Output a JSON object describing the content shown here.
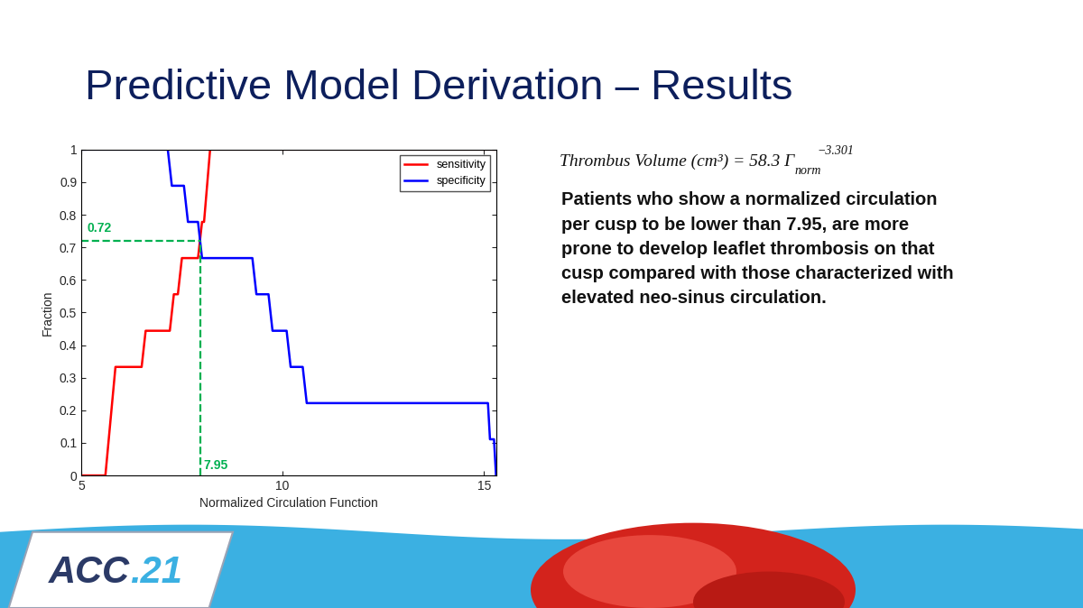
{
  "title": "Predictive Model Derivation – Results",
  "equation": {
    "text": "Thrombus Volume (cm³) = 58.3 Γ",
    "subscript": "norm",
    "superscript": "−3.301"
  },
  "text": "Patients who show a normalized circulation\nper cusp to be lower than 7.95, are more\nprone to develop leaflet thrombosis on that\ncusp compared with those characterized with\nelevated neo-sinus circulation.",
  "logo": [
    "ACC",
    ".21"
  ],
  "chart_data": {
    "type": "line",
    "x_label": "Normalized Circulation Function",
    "y_label": "Fraction",
    "xlim": [
      5,
      15.3
    ],
    "xticks": [
      5,
      10,
      15
    ],
    "ylim": [
      0,
      1
    ],
    "yticks": [
      0,
      0.1,
      0.2,
      0.3,
      0.4,
      0.5,
      0.6,
      0.7,
      0.8,
      0.9,
      1
    ],
    "grid": false,
    "legend": "upper right",
    "series": [
      {
        "name": "sensitivity",
        "color": "#ff0000",
        "x": [
          5,
          5.6,
          5.85,
          6.5,
          6.6,
          7.2,
          7.3,
          7.4,
          7.5,
          7.9,
          8.0,
          8.05,
          8.2,
          15.3
        ],
        "values": [
          0,
          0,
          0.333,
          0.333,
          0.444,
          0.444,
          0.556,
          0.556,
          0.667,
          0.667,
          0.778,
          0.778,
          1,
          1
        ]
      },
      {
        "name": "specificity",
        "color": "#0000ff",
        "x": [
          5,
          7.15,
          7.25,
          7.55,
          7.65,
          7.9,
          8.0,
          9.25,
          9.35,
          9.65,
          9.75,
          10.1,
          10.2,
          10.5,
          10.6,
          15.1,
          15.15,
          15.25,
          15.3
        ],
        "values": [
          1,
          1,
          0.889,
          0.889,
          0.778,
          0.778,
          0.667,
          0.667,
          0.556,
          0.556,
          0.444,
          0.444,
          0.333,
          0.333,
          0.222,
          0.222,
          0.111,
          0.111,
          0
        ]
      }
    ],
    "annotations": [
      {
        "x": 7.95,
        "y": 0.72,
        "color": "#00b050",
        "line_style": "dashed"
      }
    ]
  }
}
